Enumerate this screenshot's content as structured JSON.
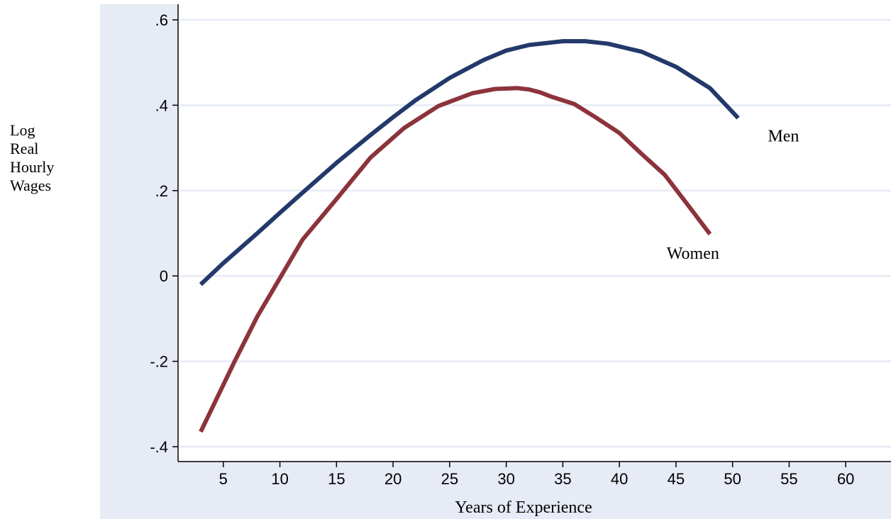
{
  "chart_data": {
    "type": "line",
    "title": "",
    "xlabel": "Years of Experience",
    "ylabel_lines": [
      "Log",
      "Real",
      "Hourly",
      "Wages"
    ],
    "xlim": [
      1,
      64
    ],
    "ylim": [
      -0.4,
      0.6
    ],
    "x_ticks": [
      5,
      10,
      15,
      20,
      25,
      30,
      35,
      40,
      45,
      50,
      55,
      60
    ],
    "x_tick_labels": [
      "5",
      "10",
      "15",
      "20",
      "25",
      "30",
      "35",
      "40",
      "45",
      "50",
      "55",
      "60"
    ],
    "y_ticks": [
      -0.4,
      -0.2,
      0,
      0.2,
      0.4,
      0.6
    ],
    "y_tick_labels": [
      "-.4",
      "-.2",
      "0",
      ".2",
      ".4",
      ".6"
    ],
    "grid": true,
    "colors": {
      "panel": "#e6ebf5",
      "plot": "#ffffff",
      "grid": "#e6ebf5",
      "axis": "#000000",
      "title": "#27419b"
    },
    "series": [
      {
        "name": "Men",
        "color": "#23396b",
        "x": [
          3,
          5,
          8,
          10,
          12,
          15,
          18,
          20,
          22,
          25,
          28,
          30,
          32,
          35,
          37,
          39,
          42,
          45,
          48,
          50.5
        ],
        "y": [
          -0.02,
          0.03,
          0.1,
          0.148,
          0.195,
          0.265,
          0.33,
          0.372,
          0.412,
          0.464,
          0.506,
          0.528,
          0.541,
          0.55,
          0.55,
          0.544,
          0.525,
          0.49,
          0.44,
          0.37
        ]
      },
      {
        "name": "Women",
        "color": "#8c333c",
        "x": [
          3,
          4,
          6,
          8,
          10,
          12,
          15,
          18,
          21,
          24,
          27,
          29,
          31,
          32,
          33,
          34,
          36,
          38,
          40,
          42,
          44,
          46,
          48
        ],
        "y": [
          -0.365,
          -0.31,
          -0.2,
          -0.095,
          -0.005,
          0.085,
          0.18,
          0.277,
          0.347,
          0.398,
          0.428,
          0.438,
          0.44,
          0.437,
          0.43,
          0.42,
          0.403,
          0.37,
          0.335,
          0.285,
          0.237,
          0.168,
          0.098
        ]
      }
    ],
    "annotations": [
      {
        "text": "Men",
        "x": 54.5,
        "y": 0.315
      },
      {
        "text": "Women",
        "x": 46.5,
        "y": 0.04
      }
    ]
  }
}
